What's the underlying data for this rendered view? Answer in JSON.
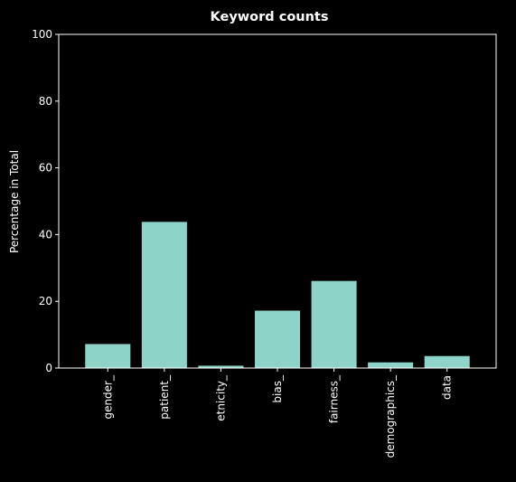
{
  "chart_data": {
    "type": "bar",
    "title": "Keyword counts",
    "xlabel": "",
    "ylabel": "Percentage in Total",
    "categories": [
      "gender_",
      "patient_",
      "etnicity_",
      "bias_",
      "fairness_",
      "demographics_",
      "data"
    ],
    "values": [
      7.2,
      43.8,
      0.7,
      17.2,
      26.1,
      1.7,
      3.6
    ],
    "ylim": [
      0,
      100
    ],
    "yticks": [
      0,
      20,
      40,
      60,
      80,
      100
    ],
    "grid": false,
    "legend": "none",
    "bar_color": "#8dd3c7",
    "background_color": "#000000",
    "axis_color": "#ffffff"
  }
}
